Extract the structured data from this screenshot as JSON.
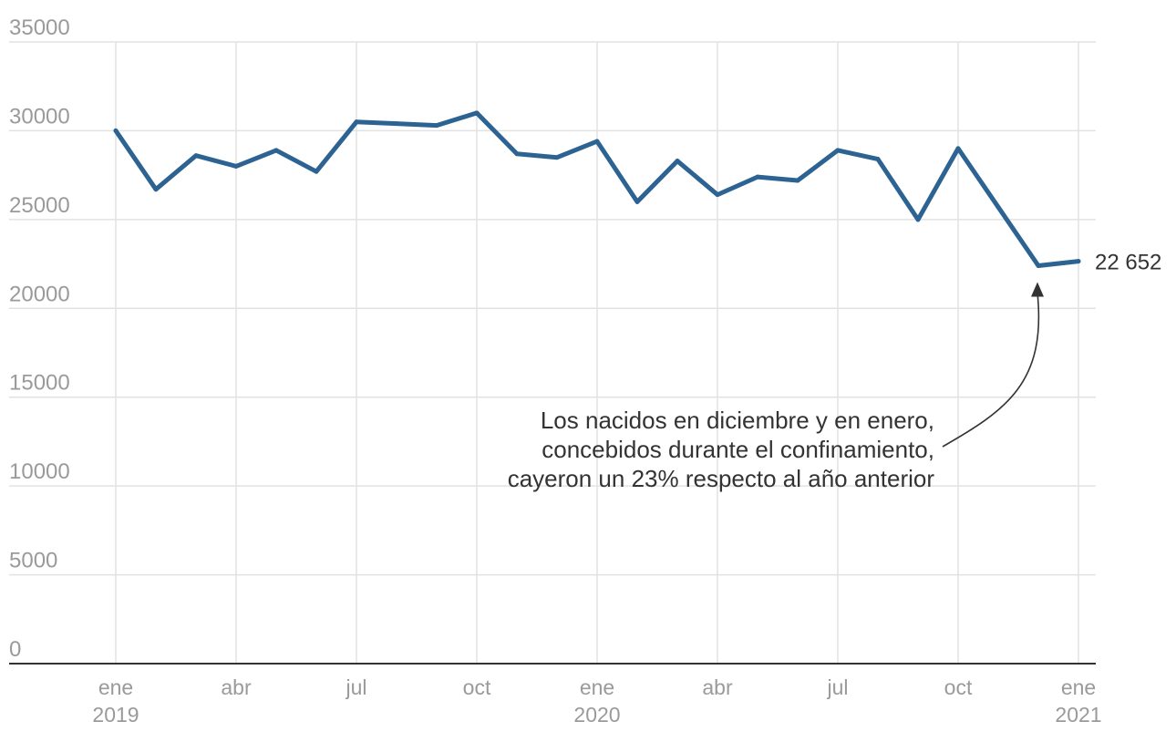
{
  "chart_data": {
    "type": "line",
    "title": "",
    "xlabel": "",
    "ylabel": "",
    "ylim": [
      0,
      35000
    ],
    "yticks": [
      {
        "value": 0,
        "label": "0"
      },
      {
        "value": 5000,
        "label": "5000"
      },
      {
        "value": 10000,
        "label": "10000"
      },
      {
        "value": 15000,
        "label": "15000"
      },
      {
        "value": 20000,
        "label": "20000"
      },
      {
        "value": 25000,
        "label": "25000"
      },
      {
        "value": 30000,
        "label": "30000"
      },
      {
        "value": 35000,
        "label": "35000"
      }
    ],
    "xticks": [
      {
        "month": 0,
        "line1": "ene",
        "line2": "2019"
      },
      {
        "month": 3,
        "line1": "abr",
        "line2": ""
      },
      {
        "month": 6,
        "line1": "jul",
        "line2": ""
      },
      {
        "month": 9,
        "line1": "oct",
        "line2": ""
      },
      {
        "month": 12,
        "line1": "ene",
        "line2": "2020"
      },
      {
        "month": 15,
        "line1": "abr",
        "line2": ""
      },
      {
        "month": 18,
        "line1": "jul",
        "line2": ""
      },
      {
        "month": 21,
        "line1": "oct",
        "line2": ""
      },
      {
        "month": 24,
        "line1": "ene",
        "line2": "2021"
      }
    ],
    "grid": true,
    "series": [
      {
        "color": "#2c6392",
        "x": [
          "2019-01",
          "2019-02",
          "2019-03",
          "2019-04",
          "2019-05",
          "2019-06",
          "2019-07",
          "2019-08",
          "2019-09",
          "2019-10",
          "2019-11",
          "2019-12",
          "2020-01",
          "2020-02",
          "2020-03",
          "2020-04",
          "2020-05",
          "2020-06",
          "2020-07",
          "2020-08",
          "2020-09",
          "2020-10",
          "2020-11",
          "2020-12",
          "2021-01"
        ],
        "values": [
          30000,
          26700,
          28600,
          28000,
          28900,
          27700,
          30500,
          30400,
          30300,
          31000,
          28700,
          28500,
          29400,
          26000,
          28300,
          26400,
          27400,
          27200,
          28900,
          28400,
          25000,
          29000,
          25700,
          22400,
          22652
        ]
      }
    ],
    "end_label": "22 652",
    "annotation": {
      "lines": [
        "Los nacidos en diciembre y en enero,",
        "concebidos durante el confinamiento,",
        "cayeron un 23% respecto al año anterior"
      ],
      "target_month": 23
    }
  }
}
